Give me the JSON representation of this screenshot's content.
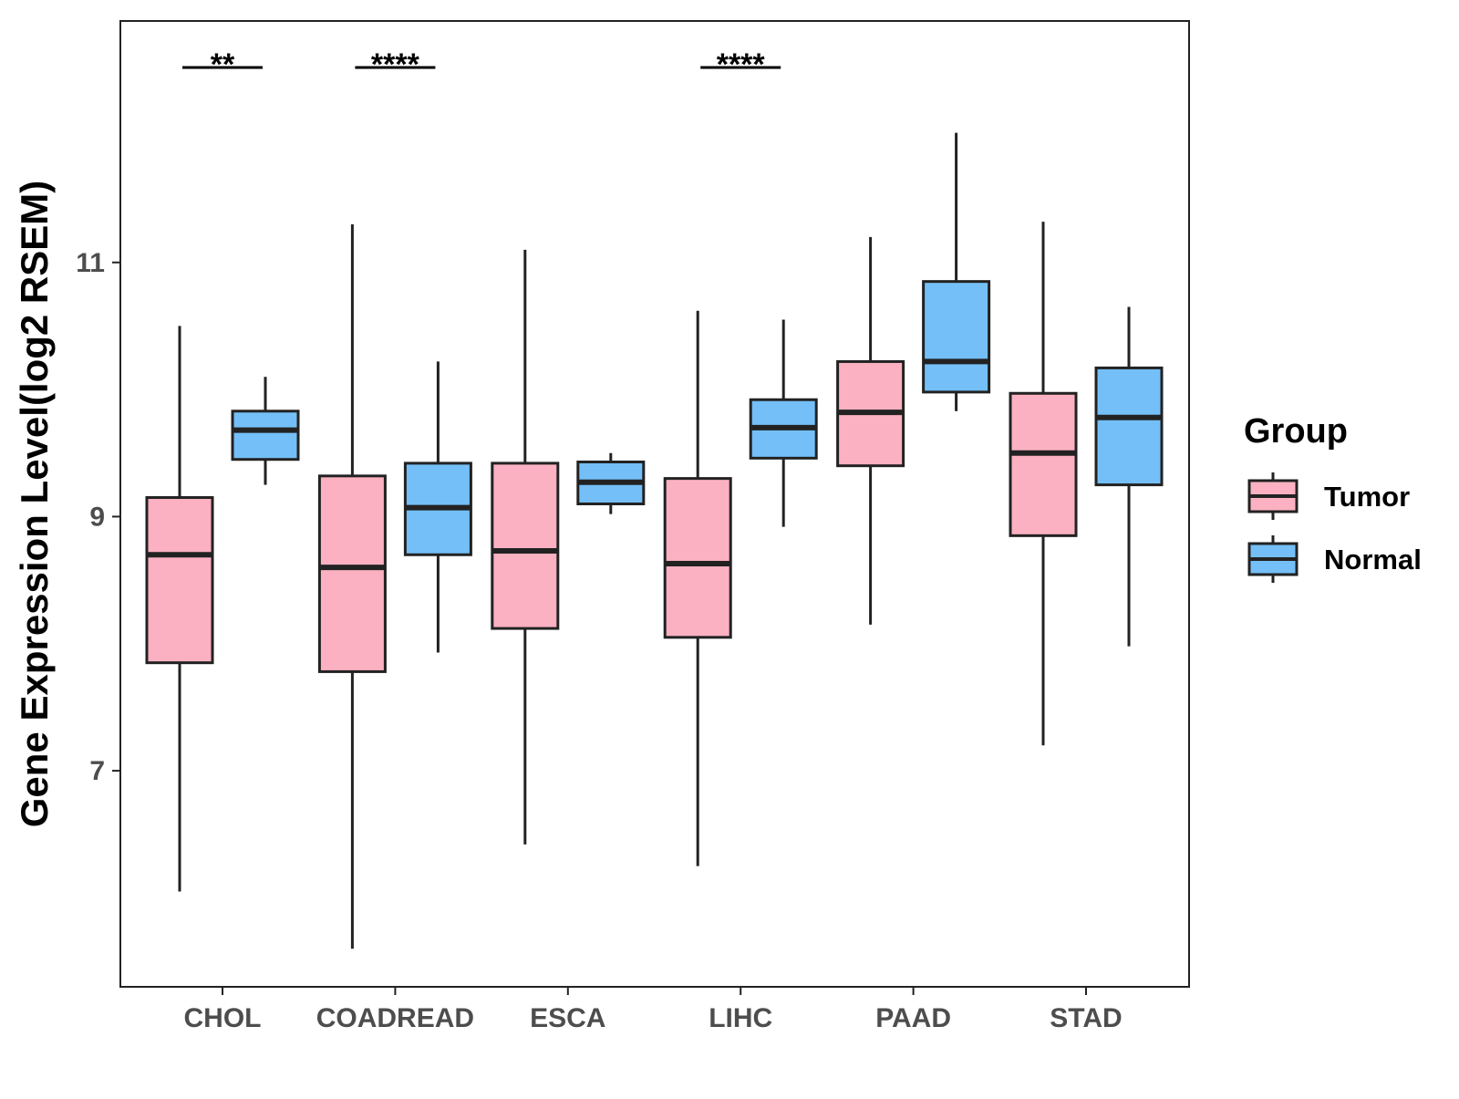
{
  "chart_data": {
    "type": "boxplot",
    "ylabel": "Gene Expression Level(log2 RSEM)",
    "xlabel": "",
    "ylim": [
      5.3,
      12.9
    ],
    "yticks": [
      {
        "value": 7,
        "label": "7"
      },
      {
        "value": 9,
        "label": "9"
      },
      {
        "value": 11,
        "label": "11"
      }
    ],
    "categories": [
      "CHOL",
      "COADREAD",
      "ESCA",
      "LIHC",
      "PAAD",
      "STAD"
    ],
    "legend": {
      "title": "Group",
      "position": "right",
      "entries": [
        {
          "name": "Tumor",
          "color": "#FBB1C1"
        },
        {
          "name": "Normal",
          "color": "#74BFF7"
        }
      ]
    },
    "series": [
      {
        "name": "Tumor",
        "color": "#FBB1C1",
        "boxes": [
          {
            "category": "CHOL",
            "min": 6.05,
            "q1": 7.85,
            "median": 8.7,
            "q3": 9.15,
            "max": 10.5
          },
          {
            "category": "COADREAD",
            "min": 5.6,
            "q1": 7.78,
            "median": 8.6,
            "q3": 9.32,
            "max": 11.3
          },
          {
            "category": "ESCA",
            "min": 6.42,
            "q1": 8.12,
            "median": 8.73,
            "q3": 9.42,
            "max": 11.1
          },
          {
            "category": "LIHC",
            "min": 6.25,
            "q1": 8.05,
            "median": 8.63,
            "q3": 9.3,
            "max": 10.62
          },
          {
            "category": "PAAD",
            "min": 8.15,
            "q1": 9.4,
            "median": 9.82,
            "q3": 10.22,
            "max": 11.2
          },
          {
            "category": "STAD",
            "min": 7.2,
            "q1": 8.85,
            "median": 9.5,
            "q3": 9.97,
            "max": 11.32
          }
        ]
      },
      {
        "name": "Normal",
        "color": "#74BFF7",
        "boxes": [
          {
            "category": "CHOL",
            "min": 9.25,
            "q1": 9.45,
            "median": 9.68,
            "q3": 9.83,
            "max": 10.1
          },
          {
            "category": "COADREAD",
            "min": 7.93,
            "q1": 8.7,
            "median": 9.07,
            "q3": 9.42,
            "max": 10.22
          },
          {
            "category": "ESCA",
            "min": 9.02,
            "q1": 9.1,
            "median": 9.27,
            "q3": 9.43,
            "max": 9.5
          },
          {
            "category": "LIHC",
            "min": 8.92,
            "q1": 9.46,
            "median": 9.7,
            "q3": 9.92,
            "max": 10.55
          },
          {
            "category": "PAAD",
            "min": 9.83,
            "q1": 9.98,
            "median": 10.22,
            "q3": 10.85,
            "max": 12.02
          },
          {
            "category": "STAD",
            "min": 7.98,
            "q1": 9.25,
            "median": 9.78,
            "q3": 10.17,
            "max": 10.65
          }
        ]
      }
    ],
    "significance": [
      {
        "category": "CHOL",
        "label": "**"
      },
      {
        "category": "COADREAD",
        "label": "****"
      },
      {
        "category": "LIHC",
        "label": "****"
      }
    ]
  }
}
